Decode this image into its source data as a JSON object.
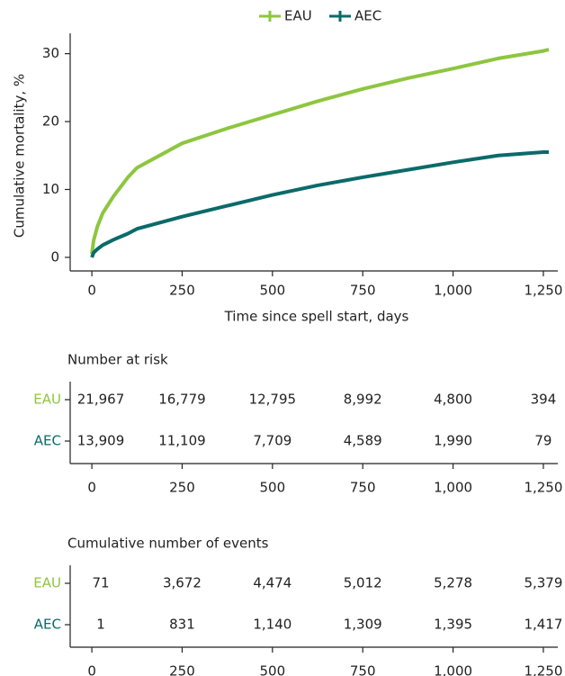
{
  "chart_data": {
    "type": "line",
    "x_label": "Time since spell start, days",
    "y_label": "Cumulative mortality, %",
    "x": [
      0,
      5,
      15,
      30,
      60,
      100,
      125,
      250,
      375,
      500,
      625,
      750,
      875,
      1000,
      1125,
      1250,
      1265
    ],
    "series": [
      {
        "name": "EAU",
        "color": "#8dc63f",
        "values": [
          0.5,
          2.5,
          4.5,
          6.5,
          9,
          11.8,
          13.2,
          16.8,
          19,
          21,
          23,
          24.8,
          26.4,
          27.8,
          29.3,
          30.4,
          30.6
        ]
      },
      {
        "name": "AEC",
        "color": "#0b6a6a",
        "values": [
          0,
          0.7,
          1.2,
          1.8,
          2.6,
          3.5,
          4.2,
          6,
          7.6,
          9.2,
          10.6,
          11.8,
          12.9,
          14,
          15,
          15.5,
          15.5
        ]
      }
    ],
    "xlim": [
      -60,
      1290
    ],
    "ylim": [
      -2,
      33
    ],
    "xticks": [
      0,
      250,
      500,
      750,
      {
        "value": 1000,
        "label": "1,000"
      },
      {
        "value": 1250,
        "label": "1,250"
      }
    ],
    "yticks": [
      0,
      10,
      20,
      30
    ],
    "legend": "top"
  },
  "tables": [
    {
      "title": "Number at risk",
      "rows": [
        {
          "label": "EAU",
          "values": [
            "21,967",
            "16,779",
            "12,795",
            "8,992",
            "4,800",
            "394"
          ]
        },
        {
          "label": "AEC",
          "values": [
            "13,909",
            "11,109",
            "7,709",
            "4,589",
            "1,990",
            "79"
          ]
        }
      ],
      "xticks": [
        0,
        250,
        500,
        750,
        {
          "value": 1000,
          "label": "1,000"
        },
        {
          "value": 1250,
          "label": "1,250"
        }
      ]
    },
    {
      "title": "Cumulative number of events",
      "rows": [
        {
          "label": "EAU",
          "values": [
            "71",
            "3,672",
            "4,474",
            "5,012",
            "5,278",
            "5,379"
          ]
        },
        {
          "label": "AEC",
          "values": [
            "1",
            "831",
            "1,140",
            "1,309",
            "1,395",
            "1,417"
          ]
        }
      ],
      "xticks": [
        0,
        250,
        500,
        750,
        {
          "value": 1000,
          "label": "1,000"
        },
        {
          "value": 1250,
          "label": "1,250"
        }
      ]
    }
  ]
}
